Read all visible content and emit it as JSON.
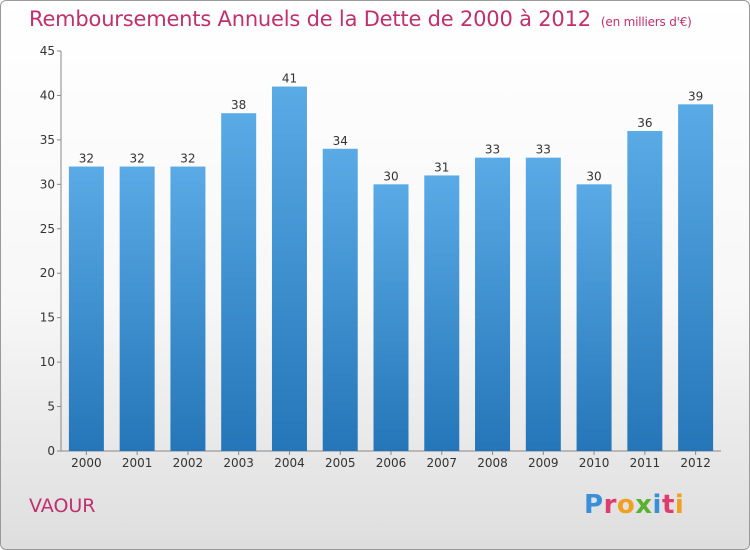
{
  "header": {
    "title": "Remboursements Annuels de la Dette de 2000 à 2012",
    "subtitle": "(en milliers d'€)"
  },
  "footer": {
    "commune": "VAOUR",
    "logo_text": "Proxiti"
  },
  "colors": {
    "bar_top": "#5aaae6",
    "bar_bottom": "#2576b8",
    "title": "#c0306e",
    "axis_text": "#333333"
  },
  "chart_data": {
    "type": "bar",
    "title": "Remboursements Annuels de la Dette de 2000 à 2012",
    "subtitle": "(en milliers d'€)",
    "xlabel": "",
    "ylabel": "",
    "categories": [
      "2000",
      "2001",
      "2002",
      "2003",
      "2004",
      "2005",
      "2006",
      "2007",
      "2008",
      "2009",
      "2010",
      "2011",
      "2012"
    ],
    "values": [
      32,
      32,
      32,
      38,
      41,
      34,
      30,
      31,
      33,
      33,
      30,
      36,
      39
    ],
    "ylim": [
      0,
      45
    ],
    "yticks": [
      0,
      5,
      10,
      15,
      20,
      25,
      30,
      35,
      40,
      45
    ],
    "grid": false,
    "data_labels": true
  }
}
